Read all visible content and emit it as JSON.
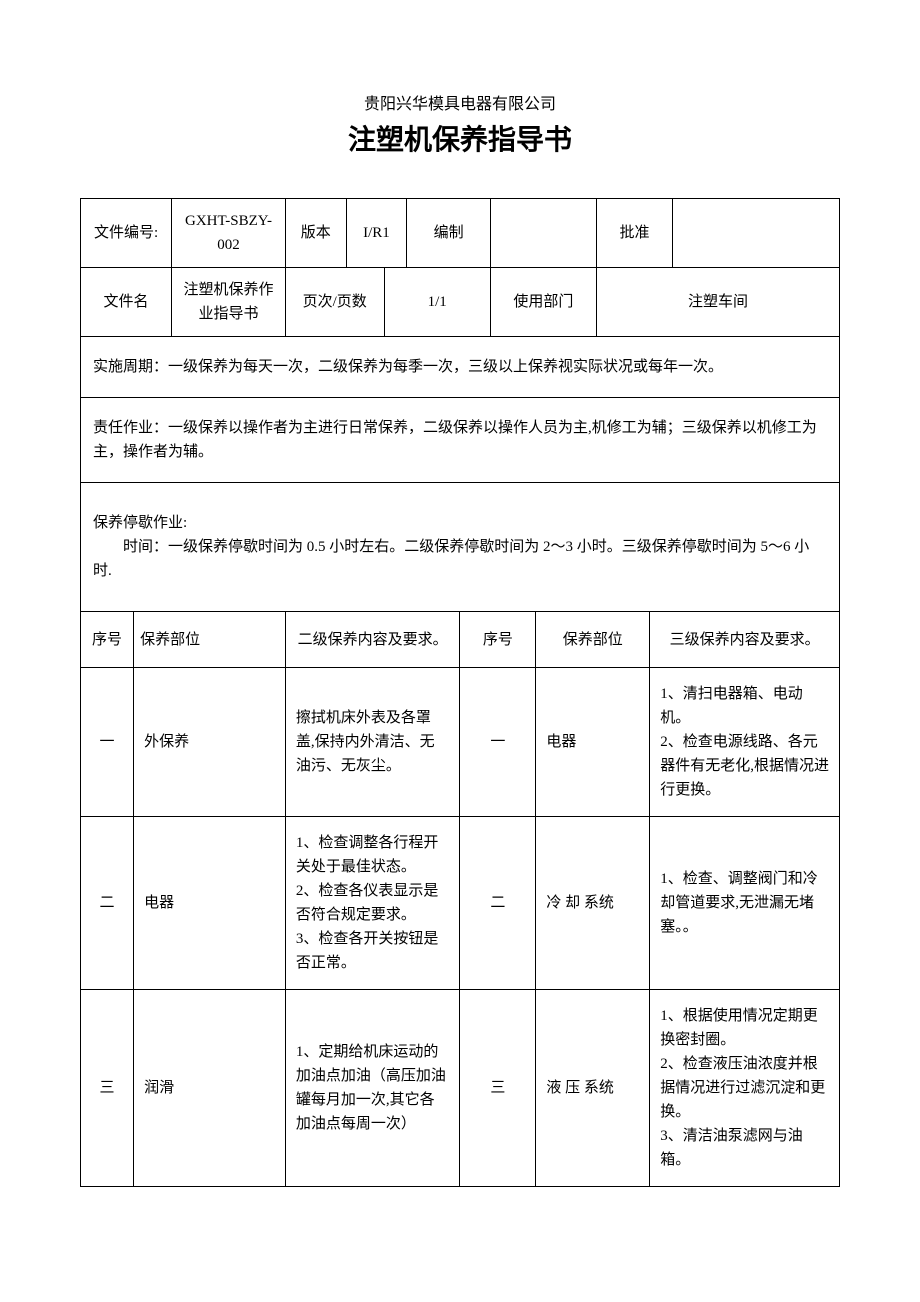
{
  "header": {
    "company": "贵阳兴华模具电器有限公司",
    "title": "注塑机保养指导书"
  },
  "meta1": {
    "doc_no_label": "文件编号:",
    "doc_no": "GXHT-SBZY-002",
    "version_label": "版本",
    "version": "I/R1",
    "compiled_label": "编制",
    "compiled": "",
    "approved_label": "批准",
    "approved": ""
  },
  "meta2": {
    "doc_name_label": "文件名",
    "doc_name": "注塑机保养作业指导书",
    "page_label": "页次/页数",
    "page": "1/1",
    "dept_label": "使用部门",
    "dept": "注塑车间"
  },
  "notes": {
    "cycle": "实施周期：一级保养为每天一次，二级保养为每季一次，三级以上保养视实际状况或每年一次。",
    "responsibility": "责任作业：一级保养以操作者为主进行日常保养，二级保养以操作人员为主,机修工为辅；三级保养以机修工为主，操作者为辅。",
    "downtime_title": "保养停歇作业:",
    "downtime_body": "时间：一级保养停歇时间为 0.5 小时左右。二级保养停歇时间为 2～3 小时。三级保养停歇时间为 5～6 小时."
  },
  "table_headers": {
    "seq": "序号",
    "part": "保养部位",
    "lvl2": "二级保养内容及要求。",
    "seq2": "序号",
    "part2": "保养部位",
    "lvl3": "三级保养内容及要求。"
  },
  "rows": [
    {
      "seq": "一",
      "part": "外保养",
      "lvl2": "擦拭机床外表及各罩盖,保持内外清洁、无油污、无灰尘。",
      "seq2": "一",
      "part2": "电器",
      "lvl3": "1、清扫电器箱、电动机。\n2、检查电源线路、各元器件有无老化,根据情况进行更换。"
    },
    {
      "seq": "二",
      "part": "电器",
      "lvl2": "1、检查调整各行程开关处于最佳状态。\n2、检查各仪表显示是否符合规定要求。\n3、检查各开关按钮是否正常。",
      "seq2": "二",
      "part2": "冷 却 系统",
      "lvl3": "1、检查、调整阀门和冷却管道要求,无泄漏无堵塞。。"
    },
    {
      "seq": "三",
      "part": "润滑",
      "lvl2": "1、定期给机床运动的加油点加油（高压加油罐每月加一次,其它各加油点每周一次）",
      "seq2": "三",
      "part2": "液 压 系统",
      "lvl3": "1、根据使用情况定期更换密封圈。\n2、检查液压油浓度并根据情况进行过滤沉淀和更换。\n3、清洁油泵滤网与油箱。"
    }
  ],
  "style": {
    "text_color": "#000000",
    "bg_color": "#ffffff",
    "border_color": "#000000",
    "title_fontsize": 28,
    "body_fontsize": 15,
    "company_fontsize": 16
  }
}
